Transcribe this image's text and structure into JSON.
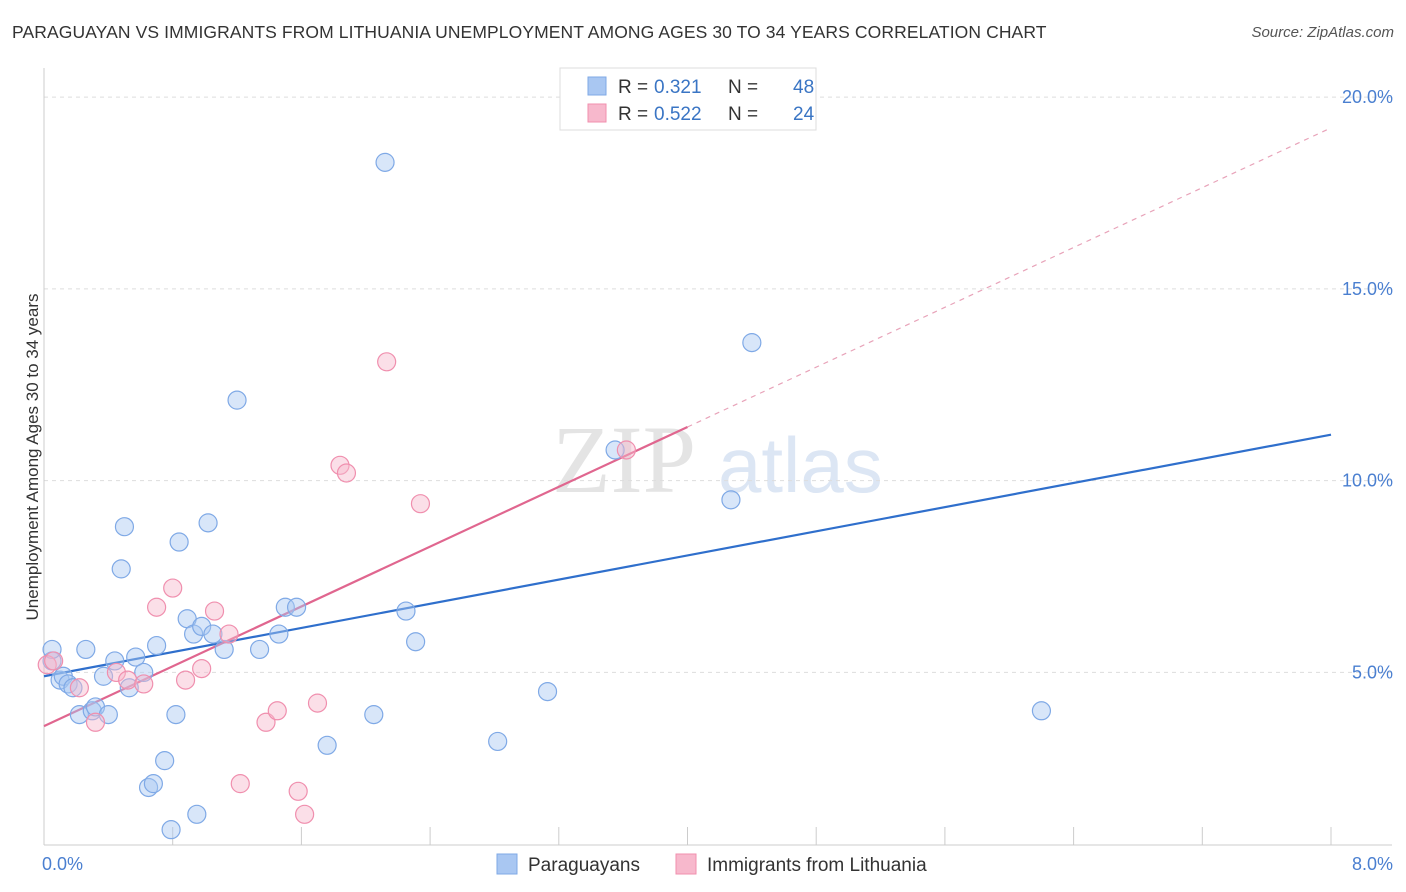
{
  "title": "PARAGUAYAN VS IMMIGRANTS FROM LITHUANIA UNEMPLOYMENT AMONG AGES 30 TO 34 YEARS CORRELATION CHART",
  "source": "Source: ZipAtlas.com",
  "watermark": {
    "zip": "ZIP",
    "atlas": "atlas"
  },
  "chart_data": {
    "type": "scatter",
    "xlabel": "",
    "ylabel": "Unemployment Among Ages 30 to 34 years",
    "xlim": [
      0,
      8
    ],
    "ylim": [
      0.5,
      20.5
    ],
    "x_tick_labels": [
      {
        "value": 0,
        "label": "0.0%"
      },
      {
        "value": 8,
        "label": "8.0%"
      }
    ],
    "y_tick_labels": [
      {
        "value": 5,
        "label": "5.0%"
      },
      {
        "value": 10,
        "label": "10.0%"
      },
      {
        "value": 15,
        "label": "15.0%"
      },
      {
        "value": 20,
        "label": "20.0%"
      }
    ],
    "x_minor_ticks": [
      0.8,
      1.6,
      2.4,
      3.2,
      4.0,
      4.8,
      5.6,
      6.4,
      7.2,
      8.0
    ],
    "legend": {
      "r_label": "R =",
      "n_label": "N =",
      "entries": [
        {
          "name": "Paraguayans",
          "r": "0.321",
          "n": "48",
          "color": "#a9c7f2"
        },
        {
          "name": "Immigrants from Lithuania",
          "r": "0.522",
          "n": "24",
          "color": "#f7b8cc"
        }
      ]
    },
    "series": [
      {
        "name": "Paraguayans",
        "color": "#7fa9e6",
        "fill": "rgba(169,199,242,0.45)",
        "line_color": "#2f6fcc",
        "trend": {
          "x0": 0,
          "y0": 4.9,
          "x1": 8.0,
          "y1": 11.2
        },
        "points": [
          [
            0.05,
            5.3
          ],
          [
            0.1,
            4.8
          ],
          [
            0.12,
            4.9
          ],
          [
            0.15,
            4.7
          ],
          [
            0.18,
            4.6
          ],
          [
            0.22,
            3.9
          ],
          [
            0.26,
            5.6
          ],
          [
            0.3,
            4.0
          ],
          [
            0.32,
            4.1
          ],
          [
            0.37,
            4.9
          ],
          [
            0.4,
            3.9
          ],
          [
            0.44,
            5.3
          ],
          [
            0.48,
            7.7
          ],
          [
            0.5,
            8.8
          ],
          [
            0.53,
            4.6
          ],
          [
            0.57,
            5.4
          ],
          [
            0.62,
            5.0
          ],
          [
            0.65,
            2.0
          ],
          [
            0.68,
            2.1
          ],
          [
            0.7,
            5.7
          ],
          [
            0.75,
            2.7
          ],
          [
            0.79,
            0.9
          ],
          [
            0.82,
            3.9
          ],
          [
            0.84,
            8.4
          ],
          [
            0.89,
            6.4
          ],
          [
            0.93,
            6.0
          ],
          [
            0.95,
            1.3
          ],
          [
            0.98,
            6.2
          ],
          [
            1.02,
            8.9
          ],
          [
            1.05,
            6.0
          ],
          [
            1.12,
            5.6
          ],
          [
            1.2,
            12.1
          ],
          [
            1.34,
            5.6
          ],
          [
            1.46,
            6.0
          ],
          [
            1.5,
            6.7
          ],
          [
            1.57,
            6.7
          ],
          [
            1.76,
            3.1
          ],
          [
            2.05,
            3.9
          ],
          [
            2.12,
            18.3
          ],
          [
            2.25,
            6.6
          ],
          [
            2.31,
            5.8
          ],
          [
            2.82,
            3.2
          ],
          [
            3.13,
            4.5
          ],
          [
            3.55,
            10.8
          ],
          [
            4.27,
            9.5
          ],
          [
            4.4,
            13.6
          ],
          [
            6.2,
            4.0
          ],
          [
            0.05,
            5.6
          ]
        ]
      },
      {
        "name": "Immigrants from Lithuania",
        "color": "#f08fae",
        "fill": "rgba(247,184,204,0.45)",
        "line_color": "#e0668f",
        "trend": {
          "x0": 0,
          "y0": 3.6,
          "x1": 4.0,
          "y1": 11.4
        },
        "trend_dashed": {
          "x0": 4.0,
          "y0": 11.4,
          "x1": 8.0,
          "y1": 19.2
        },
        "points": [
          [
            0.02,
            5.2
          ],
          [
            0.22,
            4.6
          ],
          [
            0.32,
            3.7
          ],
          [
            0.45,
            5.0
          ],
          [
            0.52,
            4.8
          ],
          [
            0.62,
            4.7
          ],
          [
            0.7,
            6.7
          ],
          [
            0.8,
            7.2
          ],
          [
            0.88,
            4.8
          ],
          [
            0.98,
            5.1
          ],
          [
            1.06,
            6.6
          ],
          [
            1.15,
            6.0
          ],
          [
            1.22,
            2.1
          ],
          [
            1.38,
            3.7
          ],
          [
            1.45,
            4.0
          ],
          [
            1.58,
            1.9
          ],
          [
            1.62,
            1.3
          ],
          [
            1.7,
            4.2
          ],
          [
            1.84,
            10.4
          ],
          [
            1.88,
            10.2
          ],
          [
            2.13,
            13.1
          ],
          [
            2.34,
            9.4
          ],
          [
            3.62,
            10.8
          ],
          [
            0.06,
            5.3
          ]
        ]
      }
    ]
  }
}
